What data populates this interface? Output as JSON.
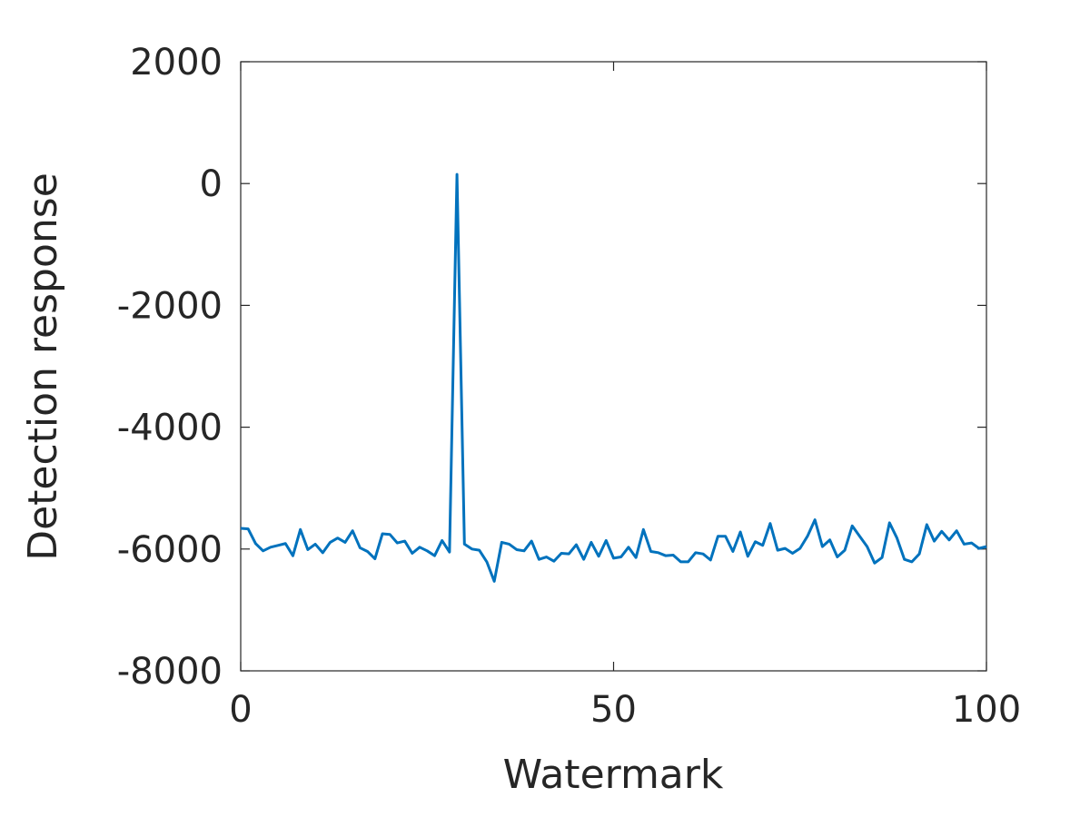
{
  "chart_data": {
    "type": "line",
    "title": "",
    "xlabel": "Watermark",
    "ylabel": "Detection response",
    "xlim": [
      0,
      100
    ],
    "ylim": [
      -8000,
      2000
    ],
    "xticks": [
      0,
      50,
      100
    ],
    "yticks": [
      2000,
      0,
      -2000,
      -4000,
      -6000,
      -8000
    ],
    "xtick_labels": [
      "0",
      "50",
      "100"
    ],
    "ytick_labels": [
      "2000",
      "0",
      "-2000",
      "-4000",
      "-6000",
      "-8000"
    ],
    "grid": false,
    "legend": "none",
    "line_color": "#0072BD",
    "series": [
      {
        "x": [
          0,
          1,
          2,
          3,
          4,
          5,
          6,
          7,
          8,
          9,
          10,
          11,
          12,
          13,
          14,
          15,
          16,
          17,
          18,
          19,
          20,
          21,
          22,
          23,
          24,
          25,
          26,
          27,
          28,
          29,
          30,
          31,
          32,
          33,
          34,
          35,
          36,
          37,
          38,
          39,
          40,
          41,
          42,
          43,
          44,
          45,
          46,
          47,
          48,
          49,
          50,
          51,
          52,
          53,
          54,
          55,
          56,
          57,
          58,
          59,
          60,
          61,
          62,
          63,
          64,
          65,
          66,
          67,
          68,
          69,
          70,
          71,
          72,
          73,
          74,
          75,
          76,
          77,
          78,
          79,
          80,
          81,
          82,
          83,
          84,
          85,
          86,
          87,
          88,
          89,
          90,
          91,
          92,
          93,
          94,
          95,
          96,
          97,
          98,
          99,
          100
        ],
        "values": [
          -5660,
          -5670,
          -5910,
          -6030,
          -5970,
          -5940,
          -5910,
          -6110,
          -5680,
          -6010,
          -5920,
          -6060,
          -5890,
          -5820,
          -5890,
          -5700,
          -5980,
          -6040,
          -6160,
          -5750,
          -5760,
          -5900,
          -5870,
          -6070,
          -5970,
          -6030,
          -6110,
          -5860,
          -6050,
          150,
          -5920,
          -6000,
          -6020,
          -6210,
          -6530,
          -5890,
          -5920,
          -6010,
          -6030,
          -5870,
          -6170,
          -6130,
          -6200,
          -6070,
          -6080,
          -5930,
          -6170,
          -5890,
          -6120,
          -5860,
          -6150,
          -6130,
          -5970,
          -6140,
          -5680,
          -6040,
          -6060,
          -6110,
          -6100,
          -6210,
          -6210,
          -6060,
          -6080,
          -6180,
          -5790,
          -5790,
          -6040,
          -5720,
          -6120,
          -5880,
          -5940,
          -5580,
          -6020,
          -5990,
          -6070,
          -5990,
          -5790,
          -5520,
          -5960,
          -5850,
          -6130,
          -6020,
          -5620,
          -5790,
          -5960,
          -6230,
          -6140,
          -5570,
          -5820,
          -6170,
          -6210,
          -6080,
          -5600,
          -5870,
          -5710,
          -5850,
          -5700,
          -5920,
          -5900,
          -5990,
          -5960
        ]
      }
    ]
  }
}
